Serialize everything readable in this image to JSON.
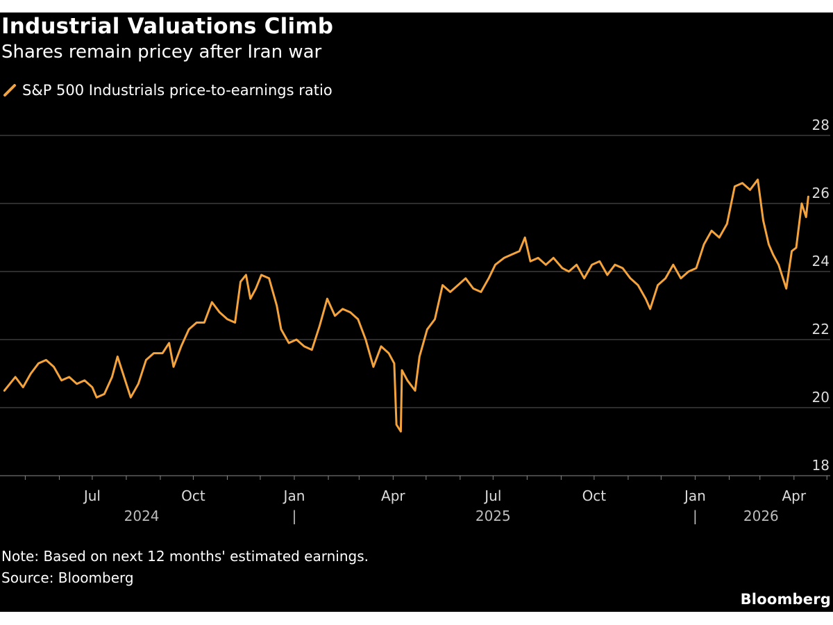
{
  "header": {
    "title": "Industrial Valuations Climb",
    "subtitle": "Shares remain pricey after Iran war"
  },
  "legend": {
    "label": "S&P 500 Industrials price-to-earnings ratio"
  },
  "footer": {
    "note": "Note: Based on next 12 months' estimated earnings.",
    "source": "Source: Bloomberg",
    "brand": "Bloomberg"
  },
  "colors": {
    "background": "#000000",
    "line": "#f5a33c",
    "grid": "#5a5a5a",
    "text": "#ffffff",
    "axis_text": "#dddddd"
  },
  "chart_data": {
    "type": "line",
    "title": "Industrial Valuations Climb",
    "subtitle": "Shares remain pricey after Iran war",
    "xlabel": "",
    "ylabel": "",
    "ylim": [
      18,
      28
    ],
    "yticks": [
      18,
      20,
      22,
      24,
      26,
      28
    ],
    "y_axis_side": "right",
    "grid": true,
    "legend_placement": "top-left",
    "x_range": [
      "2024-04-08",
      "2026-05-04"
    ],
    "x_month_ticks": [
      {
        "date": "2024-07-01",
        "label": "Jul"
      },
      {
        "date": "2024-10-01",
        "label": "Oct"
      },
      {
        "date": "2025-01-01",
        "label": "Jan"
      },
      {
        "date": "2025-04-01",
        "label": "Apr"
      },
      {
        "date": "2025-07-01",
        "label": "Jul"
      },
      {
        "date": "2025-10-01",
        "label": "Oct"
      },
      {
        "date": "2026-01-01",
        "label": "Jan"
      },
      {
        "date": "2026-04-01",
        "label": "Apr"
      }
    ],
    "x_year_labels": [
      {
        "center": "2024-08-15",
        "label": "2024"
      },
      {
        "center": "2025-07-01",
        "label": "2025"
      },
      {
        "center": "2026-03-02",
        "label": "2026"
      }
    ],
    "x_year_separators": [
      "2025-01-01",
      "2026-01-01"
    ],
    "year_separator_label": "|",
    "series": [
      {
        "name": "S&P 500 Industrials price-to-earnings ratio",
        "points": [
          [
            "2024-04-12",
            20.5
          ],
          [
            "2024-04-17",
            20.7
          ],
          [
            "2024-04-22",
            20.9
          ],
          [
            "2024-04-29",
            20.6
          ],
          [
            "2024-05-06",
            21.0
          ],
          [
            "2024-05-13",
            21.3
          ],
          [
            "2024-05-20",
            21.4
          ],
          [
            "2024-05-27",
            21.2
          ],
          [
            "2024-06-03",
            20.8
          ],
          [
            "2024-06-10",
            20.9
          ],
          [
            "2024-06-17",
            20.7
          ],
          [
            "2024-06-24",
            20.8
          ],
          [
            "2024-07-01",
            20.6
          ],
          [
            "2024-07-05",
            20.3
          ],
          [
            "2024-07-12",
            20.4
          ],
          [
            "2024-07-19",
            20.9
          ],
          [
            "2024-07-24",
            21.5
          ],
          [
            "2024-07-29",
            21.0
          ],
          [
            "2024-08-05",
            20.3
          ],
          [
            "2024-08-12",
            20.7
          ],
          [
            "2024-08-19",
            21.4
          ],
          [
            "2024-08-26",
            21.6
          ],
          [
            "2024-09-03",
            21.6
          ],
          [
            "2024-09-09",
            21.9
          ],
          [
            "2024-09-13",
            21.2
          ],
          [
            "2024-09-20",
            21.8
          ],
          [
            "2024-09-27",
            22.3
          ],
          [
            "2024-10-04",
            22.5
          ],
          [
            "2024-10-11",
            22.5
          ],
          [
            "2024-10-18",
            23.1
          ],
          [
            "2024-10-25",
            22.8
          ],
          [
            "2024-11-01",
            22.6
          ],
          [
            "2024-11-08",
            22.5
          ],
          [
            "2024-11-13",
            23.7
          ],
          [
            "2024-11-18",
            23.9
          ],
          [
            "2024-11-22",
            23.2
          ],
          [
            "2024-11-27",
            23.5
          ],
          [
            "2024-12-02",
            23.9
          ],
          [
            "2024-12-09",
            23.8
          ],
          [
            "2024-12-16",
            23.0
          ],
          [
            "2024-12-20",
            22.3
          ],
          [
            "2024-12-27",
            21.9
          ],
          [
            "2025-01-03",
            22.0
          ],
          [
            "2025-01-10",
            21.8
          ],
          [
            "2025-01-17",
            21.7
          ],
          [
            "2025-01-24",
            22.4
          ],
          [
            "2025-01-31",
            23.2
          ],
          [
            "2025-02-07",
            22.7
          ],
          [
            "2025-02-14",
            22.9
          ],
          [
            "2025-02-21",
            22.8
          ],
          [
            "2025-02-28",
            22.6
          ],
          [
            "2025-03-07",
            22.0
          ],
          [
            "2025-03-14",
            21.2
          ],
          [
            "2025-03-21",
            21.8
          ],
          [
            "2025-03-28",
            21.6
          ],
          [
            "2025-04-02",
            21.3
          ],
          [
            "2025-04-04",
            19.5
          ],
          [
            "2025-04-08",
            19.3
          ],
          [
            "2025-04-09",
            21.1
          ],
          [
            "2025-04-14",
            20.8
          ],
          [
            "2025-04-21",
            20.5
          ],
          [
            "2025-04-25",
            21.5
          ],
          [
            "2025-05-02",
            22.3
          ],
          [
            "2025-05-09",
            22.6
          ],
          [
            "2025-05-16",
            23.6
          ],
          [
            "2025-05-23",
            23.4
          ],
          [
            "2025-05-30",
            23.6
          ],
          [
            "2025-06-06",
            23.8
          ],
          [
            "2025-06-13",
            23.5
          ],
          [
            "2025-06-20",
            23.4
          ],
          [
            "2025-06-27",
            23.8
          ],
          [
            "2025-07-03",
            24.2
          ],
          [
            "2025-07-11",
            24.4
          ],
          [
            "2025-07-18",
            24.5
          ],
          [
            "2025-07-25",
            24.6
          ],
          [
            "2025-07-30",
            25.0
          ],
          [
            "2025-08-04",
            24.3
          ],
          [
            "2025-08-11",
            24.4
          ],
          [
            "2025-08-18",
            24.2
          ],
          [
            "2025-08-25",
            24.4
          ],
          [
            "2025-09-02",
            24.1
          ],
          [
            "2025-09-08",
            24.0
          ],
          [
            "2025-09-15",
            24.2
          ],
          [
            "2025-09-22",
            23.8
          ],
          [
            "2025-09-29",
            24.2
          ],
          [
            "2025-10-06",
            24.3
          ],
          [
            "2025-10-13",
            23.9
          ],
          [
            "2025-10-20",
            24.2
          ],
          [
            "2025-10-27",
            24.1
          ],
          [
            "2025-11-03",
            23.8
          ],
          [
            "2025-11-10",
            23.6
          ],
          [
            "2025-11-17",
            23.2
          ],
          [
            "2025-11-21",
            22.9
          ],
          [
            "2025-11-28",
            23.6
          ],
          [
            "2025-12-05",
            23.8
          ],
          [
            "2025-12-12",
            24.2
          ],
          [
            "2025-12-19",
            23.8
          ],
          [
            "2025-12-26",
            24.0
          ],
          [
            "2026-01-02",
            24.1
          ],
          [
            "2026-01-09",
            24.8
          ],
          [
            "2026-01-16",
            25.2
          ],
          [
            "2026-01-23",
            25.0
          ],
          [
            "2026-01-30",
            25.4
          ],
          [
            "2026-02-06",
            26.5
          ],
          [
            "2026-02-13",
            26.6
          ],
          [
            "2026-02-20",
            26.4
          ],
          [
            "2026-02-27",
            26.7
          ],
          [
            "2026-03-04",
            25.5
          ],
          [
            "2026-03-09",
            24.8
          ],
          [
            "2026-03-13",
            24.5
          ],
          [
            "2026-03-18",
            24.2
          ],
          [
            "2026-03-25",
            23.5
          ],
          [
            "2026-03-30",
            24.6
          ],
          [
            "2026-04-03",
            24.7
          ],
          [
            "2026-04-08",
            26.0
          ],
          [
            "2026-04-12",
            25.6
          ],
          [
            "2026-04-14",
            26.2
          ]
        ]
      }
    ]
  }
}
